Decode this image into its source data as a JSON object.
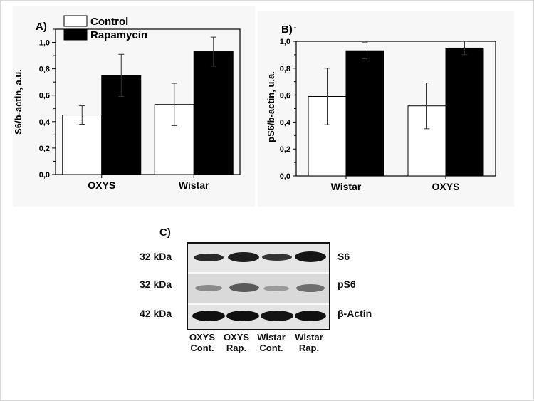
{
  "legend": {
    "control": "Control",
    "rapamycin": "Rapamycin"
  },
  "colors": {
    "control": "#ffffff",
    "rapamycin": "#000000",
    "axis": "#000000"
  },
  "chart_data": [
    {
      "type": "bar",
      "panel_label": "A)",
      "ylabel": "S6/b-actin, a.u.",
      "categories": [
        "OXYS",
        "Wistar"
      ],
      "ylim": [
        0,
        1.1
      ],
      "yticks": [
        "0,0",
        "0,2",
        "0,4",
        "0,6",
        "0,8",
        "1,0"
      ],
      "series": [
        {
          "name": "Control",
          "values": [
            0.45,
            0.53
          ],
          "errors": [
            0.07,
            0.16
          ]
        },
        {
          "name": "Rapamycin",
          "values": [
            0.75,
            0.93
          ],
          "errors": [
            0.16,
            0.11
          ]
        }
      ]
    },
    {
      "type": "bar",
      "panel_label": "B)",
      "ylabel": "pS6/b-actin, u.a.",
      "categories": [
        "Wistar",
        "OXYS"
      ],
      "ylim": [
        0,
        1.0
      ],
      "yticks": [
        "0,0",
        "0,2",
        "0,4",
        "0,6",
        "0,8",
        "1,0"
      ],
      "series": [
        {
          "name": "Control",
          "values": [
            0.59,
            0.52
          ],
          "errors": [
            0.21,
            0.17
          ]
        },
        {
          "name": "Rapamycin",
          "values": [
            0.93,
            0.95
          ],
          "errors": [
            0.06,
            0.05
          ]
        }
      ]
    }
  ],
  "blot": {
    "panel_label": "C)",
    "rows": [
      {
        "kda": "32 kDa",
        "protein": "S6"
      },
      {
        "kda": "32 kDa",
        "protein": "pS6"
      },
      {
        "kda": "42 kDa",
        "protein": "β-Actin"
      }
    ],
    "lanes": [
      {
        "line1": "OXYS",
        "line2": "Cont."
      },
      {
        "line1": "OXYS",
        "line2": "Rap."
      },
      {
        "line1": "Wistar",
        "line2": "Cont."
      },
      {
        "line1": "Wistar",
        "line2": "Rap."
      }
    ]
  }
}
